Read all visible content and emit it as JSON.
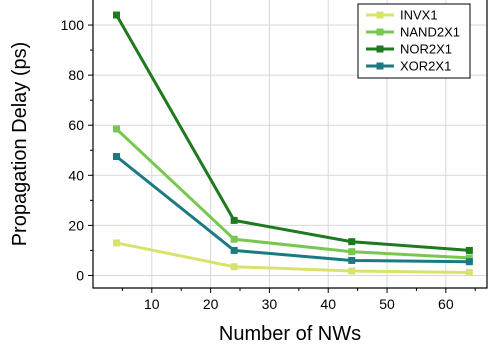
{
  "chart_data": {
    "type": "line",
    "title": "",
    "xlabel": "Number of NWs",
    "ylabel": "Propagation Delay (ps)",
    "xlim": [
      0,
      67
    ],
    "ylim": [
      -5,
      110
    ],
    "x_ticks": [
      10,
      20,
      30,
      40,
      50,
      60
    ],
    "y_ticks": [
      0,
      20,
      40,
      60,
      80,
      100
    ],
    "grid": true,
    "legend_position": "top-right",
    "series": [
      {
        "name": "INVX1",
        "color": "#d8e36e",
        "x": [
          4,
          24,
          44,
          64
        ],
        "y": [
          13,
          3.5,
          1.8,
          1.2
        ]
      },
      {
        "name": "NAND2X1",
        "color": "#78c850",
        "x": [
          4,
          24,
          44,
          64
        ],
        "y": [
          58.5,
          14.5,
          9.5,
          7
        ]
      },
      {
        "name": "NOR2X1",
        "color": "#1e7a1e",
        "x": [
          4,
          24,
          44,
          64
        ],
        "y": [
          104,
          22,
          13.5,
          10
        ]
      },
      {
        "name": "XOR2X1",
        "color": "#1a7a80",
        "x": [
          4,
          24,
          44,
          64
        ],
        "y": [
          47.5,
          10,
          6,
          5.5
        ]
      }
    ]
  }
}
